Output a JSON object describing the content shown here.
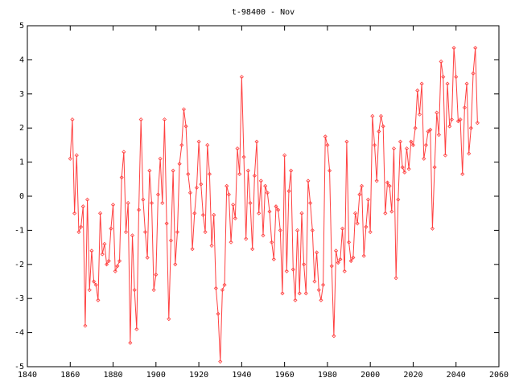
{
  "chart_data": {
    "type": "line",
    "title": "t-98400 - Nov",
    "color": "#ff4040",
    "x": [
      1860,
      1861,
      1862,
      1863,
      1864,
      1865,
      1866,
      1867,
      1868,
      1869,
      1870,
      1871,
      1872,
      1873,
      1874,
      1875,
      1876,
      1877,
      1878,
      1879,
      1880,
      1881,
      1882,
      1883,
      1884,
      1885,
      1886,
      1887,
      1888,
      1889,
      1890,
      1891,
      1892,
      1893,
      1894,
      1895,
      1896,
      1897,
      1898,
      1899,
      1900,
      1901,
      1902,
      1903,
      1904,
      1905,
      1906,
      1907,
      1908,
      1909,
      1910,
      1911,
      1912,
      1913,
      1914,
      1915,
      1916,
      1917,
      1918,
      1919,
      1920,
      1921,
      1922,
      1923,
      1924,
      1925,
      1926,
      1927,
      1928,
      1929,
      1930,
      1931,
      1932,
      1933,
      1934,
      1935,
      1936,
      1937,
      1938,
      1939,
      1940,
      1941,
      1942,
      1943,
      1944,
      1945,
      1946,
      1947,
      1948,
      1949,
      1950,
      1951,
      1952,
      1953,
      1954,
      1955,
      1956,
      1957,
      1958,
      1959,
      1960,
      1961,
      1962,
      1963,
      1964,
      1965,
      1966,
      1967,
      1968,
      1969,
      1970,
      1971,
      1972,
      1973,
      1974,
      1975,
      1976,
      1977,
      1978,
      1979,
      1980,
      1981,
      1982,
      1983,
      1984,
      1985,
      1986,
      1987,
      1988,
      1989,
      1990,
      1991,
      1992,
      1993,
      1994,
      1995,
      1996,
      1997,
      1998,
      1999,
      2000,
      2001,
      2002,
      2003,
      2004,
      2005,
      2006,
      2007,
      2008,
      2009,
      2010,
      2011,
      2012,
      2013,
      2014,
      2015,
      2016,
      2017,
      2018,
      2019,
      2020,
      2021,
      2022,
      2023,
      2024,
      2025,
      2026,
      2027,
      2028,
      2029,
      2030,
      2031,
      2032,
      2033,
      2034,
      2035,
      2036,
      2037,
      2038,
      2039,
      2040,
      2041,
      2042,
      2043,
      2044,
      2045,
      2046,
      2047,
      2048,
      2049,
      2050
    ],
    "values": [
      1.1,
      2.25,
      -0.5,
      1.2,
      -1.05,
      -0.9,
      -0.3,
      -3.8,
      -0.1,
      -2.75,
      -1.6,
      -2.5,
      -2.6,
      -3.05,
      -0.5,
      -1.7,
      -1.4,
      -2.0,
      -1.9,
      -0.95,
      -0.25,
      -2.2,
      -2.05,
      -1.9,
      0.55,
      1.3,
      -1.05,
      -0.2,
      -4.3,
      -1.15,
      -2.75,
      -3.9,
      -0.4,
      2.25,
      -0.1,
      -1.05,
      -1.8,
      0.75,
      -0.2,
      -2.75,
      -2.3,
      0.05,
      1.1,
      -0.2,
      2.25,
      -0.8,
      -3.6,
      -1.3,
      0.75,
      -2.0,
      -1.05,
      0.95,
      1.5,
      2.55,
      2.05,
      0.65,
      0.1,
      -1.55,
      -0.5,
      0.25,
      1.6,
      0.35,
      -0.55,
      -1.05,
      1.5,
      0.65,
      -1.45,
      -0.55,
      -2.7,
      -3.45,
      -4.85,
      -2.75,
      -2.6,
      0.3,
      0.05,
      -1.35,
      -0.25,
      -0.65,
      1.4,
      0.65,
      3.5,
      1.15,
      -1.25,
      0.75,
      -0.2,
      -1.55,
      0.6,
      1.6,
      -0.5,
      0.45,
      -1.15,
      0.3,
      0.1,
      -0.45,
      -1.35,
      -1.85,
      -0.3,
      -0.4,
      -1.0,
      -2.85,
      1.2,
      -2.2,
      0.15,
      0.75,
      -2.15,
      -3.05,
      -1.0,
      -2.85,
      -0.5,
      -2.0,
      -2.85,
      0.45,
      -0.2,
      -1.0,
      -2.5,
      -1.65,
      -2.75,
      -3.05,
      -2.6,
      1.75,
      1.5,
      0.75,
      -2.05,
      -4.1,
      -1.6,
      -1.95,
      -1.85,
      -0.95,
      -2.2,
      1.6,
      -1.35,
      -1.9,
      -1.8,
      -0.5,
      -0.8,
      0.05,
      0.3,
      -1.75,
      -0.9,
      -0.1,
      -1.05,
      2.35,
      1.5,
      0.45,
      1.9,
      2.35,
      2.05,
      -0.5,
      0.4,
      0.3,
      -0.45,
      1.4,
      -2.4,
      -0.1,
      1.6,
      0.85,
      0.7,
      1.4,
      0.8,
      1.6,
      1.5,
      2.0,
      3.1,
      2.4,
      3.3,
      1.1,
      1.5,
      1.9,
      1.95,
      -0.95,
      0.85,
      2.45,
      1.8,
      3.95,
      3.5,
      1.2,
      3.3,
      2.05,
      2.25,
      4.35,
      3.5,
      2.2,
      2.25,
      0.65,
      2.6,
      3.3,
      1.25,
      2.0,
      3.6,
      4.35,
      2.15
    ],
    "xlim": [
      1840,
      2060
    ],
    "xticks": [
      1840,
      1860,
      1880,
      1900,
      1920,
      1940,
      1960,
      1980,
      2000,
      2020,
      2040,
      2060
    ],
    "ylim": [
      -5,
      5
    ],
    "yticks": [
      -5,
      -4,
      -3,
      -2,
      -1,
      0,
      1,
      2,
      3,
      4,
      5
    ]
  }
}
